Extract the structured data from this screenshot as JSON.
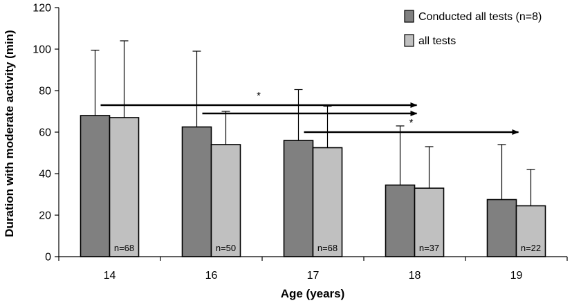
{
  "chart_data": {
    "type": "bar",
    "title": "",
    "xlabel": "Age (years)",
    "ylabel": "Duration with moderate activity (min)",
    "ylim": [
      0,
      120
    ],
    "yticks": [
      0,
      20,
      40,
      60,
      80,
      100,
      120
    ],
    "categories": [
      "14",
      "16",
      "17",
      "18",
      "19"
    ],
    "series": [
      {
        "name": "Conducted all tests (n=8)",
        "color": "#808080",
        "values": [
          68,
          62.5,
          56,
          34.5,
          27.5
        ],
        "error_upper": [
          99.5,
          99,
          80.5,
          63,
          54
        ]
      },
      {
        "name": "all tests",
        "color": "#c0c0c0",
        "values": [
          67,
          54,
          52.5,
          33,
          24.5
        ],
        "error_upper": [
          104,
          70,
          72.5,
          53,
          42
        ]
      }
    ],
    "n_labels": [
      "n=68",
      "n=50",
      "n=68",
      "n=37",
      "n=22"
    ],
    "significance": [
      {
        "from": "14",
        "to": "18",
        "y": 73,
        "label": "*"
      },
      {
        "from": "16",
        "to": "18",
        "y": 69,
        "label": ""
      },
      {
        "from": "17",
        "to": "19",
        "y": 60,
        "label": "*"
      }
    ],
    "legend_position": "top-right"
  }
}
